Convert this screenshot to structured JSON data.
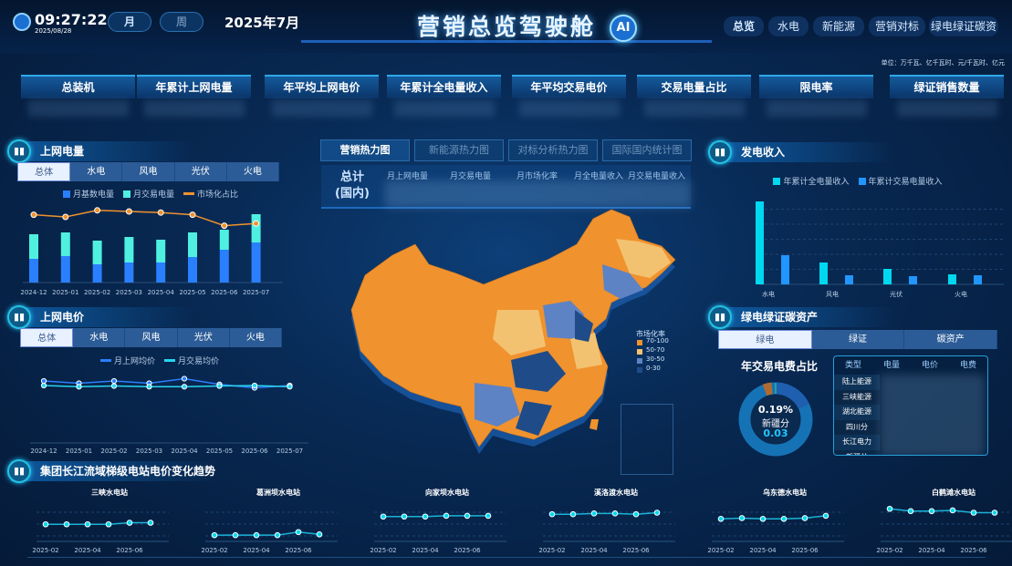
{
  "header": {
    "time": "09:27:22",
    "date": "2025/08/28",
    "period_tabs": [
      {
        "label": "月",
        "active": true
      },
      {
        "label": "周",
        "active": false
      }
    ],
    "current_period": "2025年7月",
    "title": "营销总览驾驶舱",
    "ai_badge": "AI",
    "nav": [
      {
        "label": "总览",
        "active": true
      },
      {
        "label": "水电"
      },
      {
        "label": "新能源"
      },
      {
        "label": "营销对标"
      },
      {
        "label": "绿电绿证碳资"
      }
    ]
  },
  "unit_note": "单位：万千瓦、亿千瓦时、元/千瓦时、亿元",
  "kpis": [
    "总装机",
    "年累计上网电量",
    "年平均上网电价",
    "年累计全电量收入",
    "年平均交易电价",
    "交易电量占比",
    "限电率",
    "绿证销售数量"
  ],
  "left": {
    "energy": {
      "title": "上网电量",
      "tabs": [
        "总体",
        "水电",
        "风电",
        "光伏",
        "火电"
      ],
      "active_tab": "总体"
    },
    "price": {
      "title": "上网电价",
      "tabs": [
        "总体",
        "水电",
        "风电",
        "光伏",
        "火电"
      ],
      "active_tab": "总体"
    }
  },
  "center": {
    "tabs": [
      "营销热力图",
      "新能源热力图",
      "对标分析热力图",
      "国际国内统计图"
    ],
    "active_tab": "营销热力图",
    "total_label": "总计",
    "total_sub": "(国内)",
    "stat_headers": [
      "月上网电量",
      "月交易电量",
      "月市场化率",
      "月全电量收入",
      "月交易电量收入"
    ],
    "map_legend": {
      "title": "市场化率",
      "items": [
        {
          "label": "70-100",
          "color": "#f0922e"
        },
        {
          "label": "50-70",
          "color": "#f3c270"
        },
        {
          "label": "30-50",
          "color": "#5d83c4"
        },
        {
          "label": "0-30",
          "color": "#1f4c88"
        }
      ]
    }
  },
  "right": {
    "revenue": {
      "title": "发电收入"
    },
    "green": {
      "title": "绿电绿证碳资产",
      "tabs": [
        "绿电",
        "绿证",
        "碳资产"
      ],
      "active_tab": "绿电",
      "donut_title": "年交易电费占比",
      "donut_pct": "0.19%",
      "donut_name": "新疆分",
      "donut_value": "0.03",
      "table_headers": [
        "类型",
        "电量",
        "电价",
        "电费"
      ],
      "table_rows": [
        "陆上能源",
        "三峡能源",
        "湖北能源",
        "四川分",
        "长江电力",
        "新疆分"
      ]
    }
  },
  "bottom": {
    "title": "集团长江流域梯级电站电价变化趋势"
  },
  "colors": {
    "accent": "#22c6ff",
    "orange": "#f0922e",
    "blue": "#2a7fff",
    "teal": "#4ff0e0"
  },
  "chart_data": [
    {
      "type": "bar",
      "title": "上网电量",
      "categories": [
        "2024-12",
        "2025-01",
        "2025-02",
        "2025-03",
        "2025-04",
        "2025-05",
        "2025-06",
        "2025-07"
      ],
      "series": [
        {
          "name": "月基数电量",
          "values": [
            26,
            29,
            20,
            22,
            22,
            28,
            36,
            44
          ],
          "color": "#2a7fff"
        },
        {
          "name": "月交易电量",
          "values": [
            27,
            26,
            26,
            28,
            25,
            27,
            22,
            31
          ],
          "color": "#4ff0e0"
        },
        {
          "name": "市场化占比",
          "type": "line",
          "values": [
            82,
            80,
            86,
            85,
            84,
            82,
            72,
            74
          ],
          "color": "#f0922e"
        }
      ]
    },
    {
      "type": "line",
      "title": "上网电价",
      "categories": [
        "2024-12",
        "2025-01",
        "2025-02",
        "2025-03",
        "2025-04",
        "2025-05",
        "2025-06",
        "2025-07"
      ],
      "series": [
        {
          "name": "月上网均价",
          "values": [
            0.3,
            0.29,
            0.3,
            0.29,
            0.31,
            0.285,
            0.27,
            0.28
          ],
          "color": "#2a7fff"
        },
        {
          "name": "月交易均价",
          "values": [
            0.28,
            0.275,
            0.278,
            0.275,
            0.275,
            0.278,
            0.28,
            0.275
          ],
          "color": "#2ad4f0"
        }
      ]
    },
    {
      "type": "bar",
      "title": "发电收入",
      "categories": [
        "水电",
        "风电",
        "光伏",
        "火电"
      ],
      "series": [
        {
          "name": "年累计全电量收入",
          "values": [
            91,
            24,
            17,
            11
          ],
          "color": "#00d8f0"
        },
        {
          "name": "年累计交易电量收入",
          "values": [
            32,
            10,
            9,
            10
          ],
          "color": "#2196ff"
        }
      ]
    },
    {
      "type": "pie",
      "title": "年交易电费占比",
      "values": [
        0.19,
        3.5,
        96.31
      ]
    },
    {
      "type": "line",
      "stations": [
        {
          "name": "三峡水电站",
          "x": [
            "2025-02",
            "2025-03",
            "2025-04",
            "2025-05",
            "2025-06",
            "2025-07"
          ],
          "values": [
            15,
            15,
            15,
            15,
            17,
            17
          ]
        },
        {
          "name": "葛洲坝水电站",
          "x": [
            "2025-02",
            "2025-03",
            "2025-04",
            "2025-05",
            "2025-06",
            "2025-07"
          ],
          "values": [
            1,
            1,
            1,
            1,
            5,
            2
          ]
        },
        {
          "name": "向家坝水电站",
          "x": [
            "2025-02",
            "2025-03",
            "2025-04",
            "2025-05",
            "2025-06",
            "2025-07"
          ],
          "values": [
            25,
            25,
            25,
            26,
            26,
            26
          ]
        },
        {
          "name": "溪洛渡水电站",
          "x": [
            "2025-02",
            "2025-03",
            "2025-04",
            "2025-05",
            "2025-06",
            "2025-07"
          ],
          "values": [
            28,
            28,
            29,
            29,
            28,
            30
          ]
        },
        {
          "name": "乌东德水电站",
          "x": [
            "2025-02",
            "2025-03",
            "2025-04",
            "2025-05",
            "2025-06",
            "2025-07"
          ],
          "values": [
            22,
            23,
            22,
            22,
            23,
            26
          ]
        },
        {
          "name": "白鹤滩水电站",
          "x": [
            "2025-02",
            "2025-03",
            "2025-04",
            "2025-05",
            "2025-06",
            "2025-07"
          ],
          "values": [
            35,
            32,
            32,
            33,
            30,
            30
          ]
        }
      ],
      "tick_labels": [
        "2025-02",
        "2025-04",
        "2025-06"
      ]
    }
  ]
}
